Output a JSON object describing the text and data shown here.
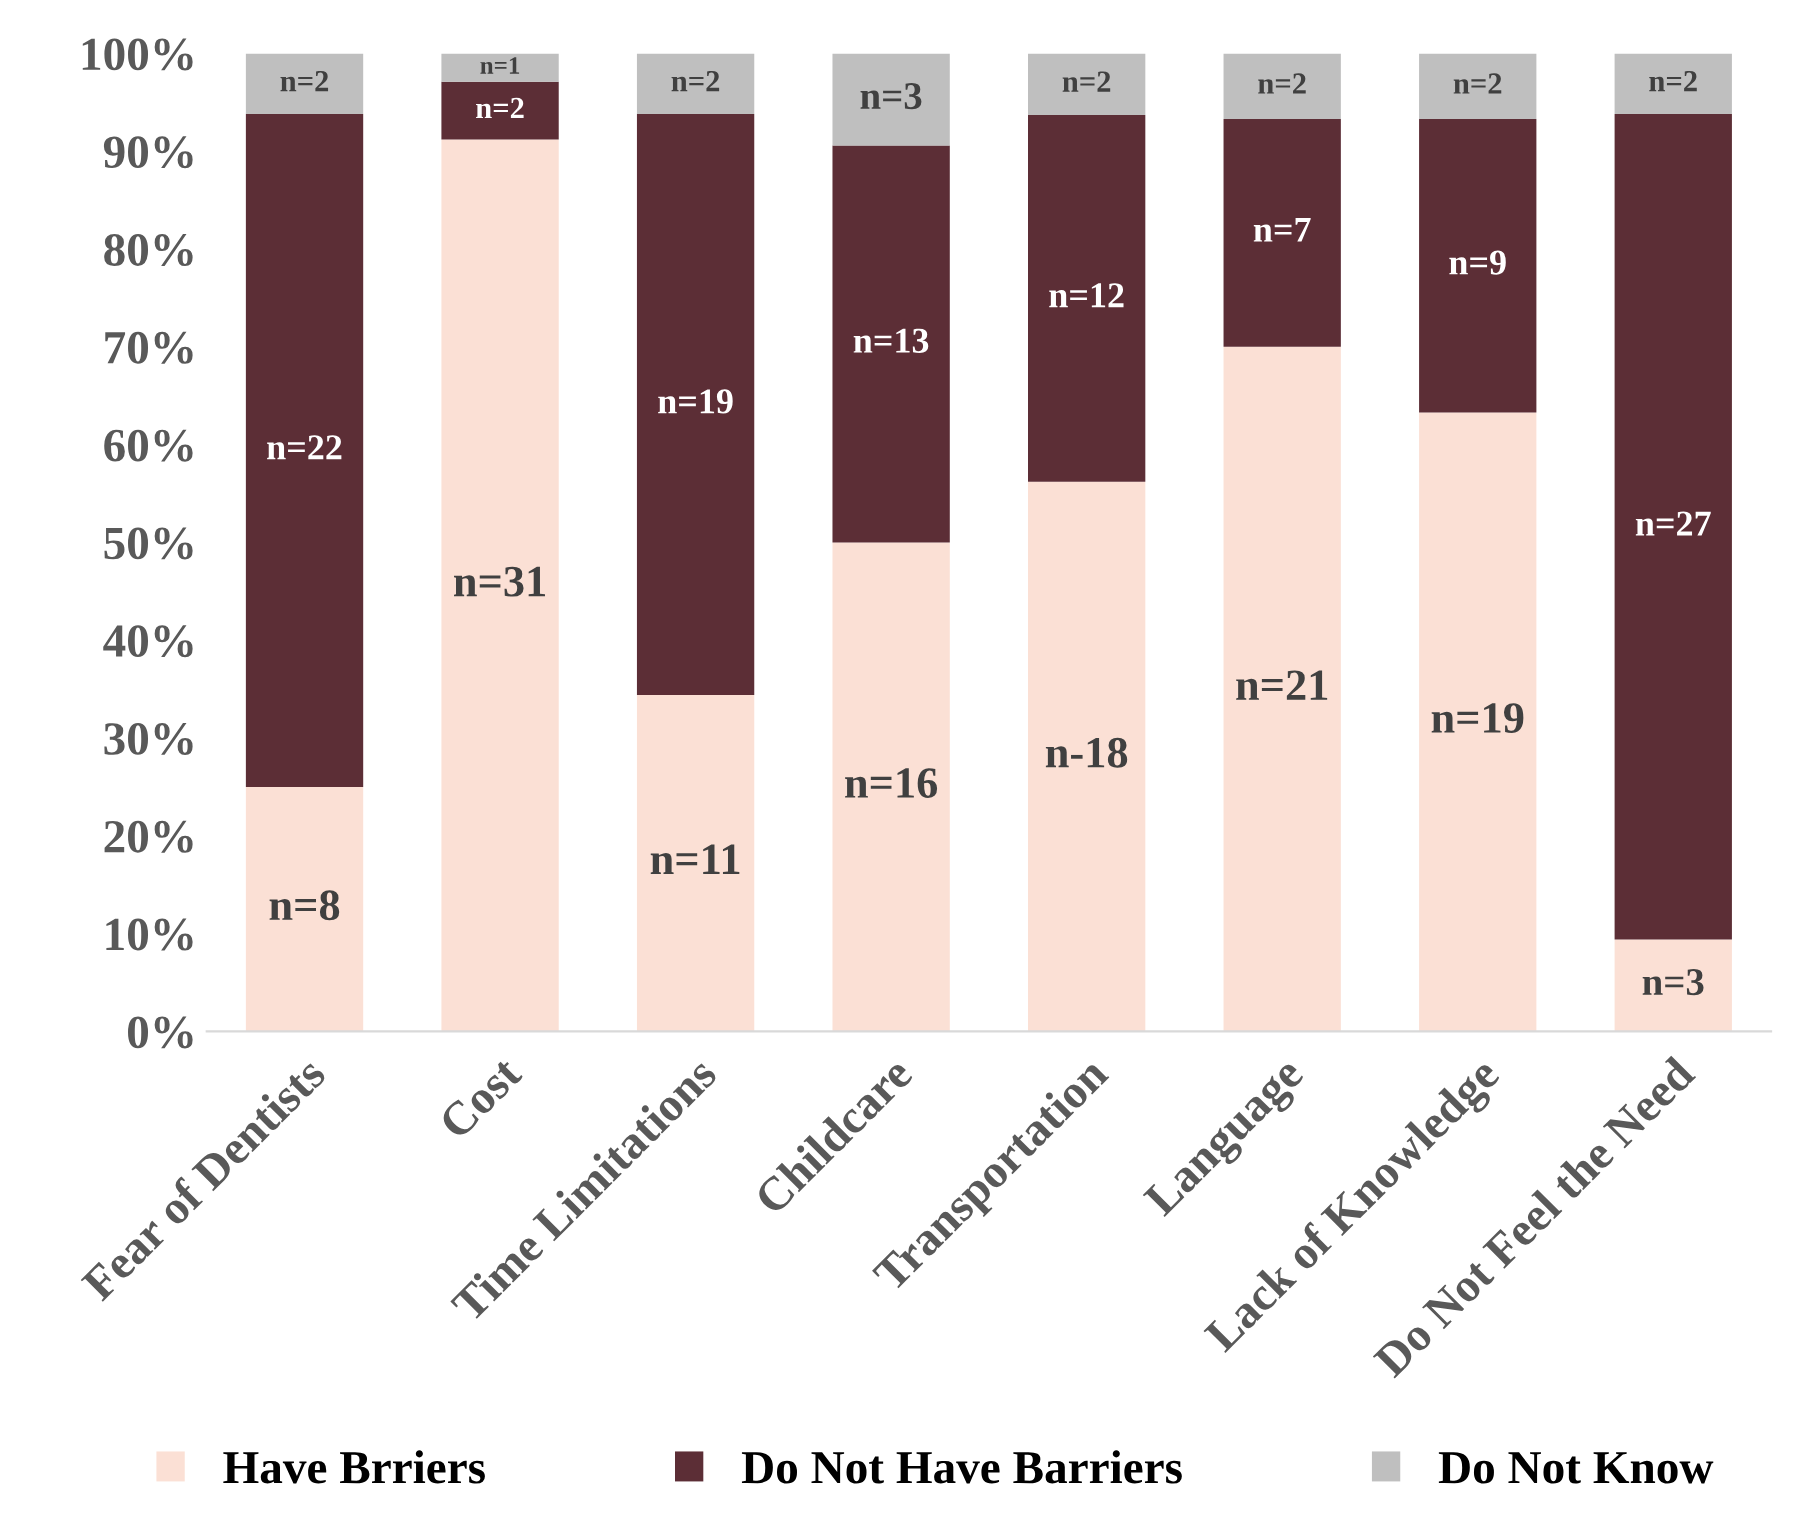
{
  "chart_data": {
    "type": "bar",
    "stacked": true,
    "categories": [
      "Fear of Dentists",
      "Cost",
      "Time Limitations",
      "Childcare",
      "Transportation",
      "Language",
      "Lack of Knowledge",
      "Do Not Feel the Need"
    ],
    "series": [
      {
        "name": "Have Brriers",
        "color": "#fbe0d5",
        "values": [
          25,
          91.2,
          34.4,
          50,
          56.2,
          70,
          63.3,
          9.4
        ]
      },
      {
        "name": "Do Not Have Barriers",
        "color": "#5c2e36",
        "values": [
          68.8,
          5.9,
          59.4,
          40.6,
          37.5,
          23.3,
          30,
          84.4
        ]
      },
      {
        "name": "Do Not Know",
        "color": "#bfbfbf",
        "values": [
          6.2,
          2.9,
          6.2,
          9.4,
          6.3,
          6.7,
          6.7,
          6.2
        ]
      }
    ],
    "annotations": [
      "n=8",
      "n=31",
      "n=11",
      "n=16",
      "n-18",
      "n=21",
      "n=19",
      "n=3",
      "n=22",
      "n=2",
      "n=19",
      "n=13",
      "n=12",
      "n=7",
      "n=9",
      "n=27",
      "n=2",
      "n=1",
      "n=2",
      "n=3",
      "n=2",
      "n=2",
      "n=2",
      "n=2"
    ],
    "ylim": [
      0,
      100
    ],
    "yticks": [
      {
        "value": 0,
        "label": "0%"
      },
      {
        "value": 10,
        "label": "10%"
      },
      {
        "value": 20,
        "label": "20%"
      },
      {
        "value": 30,
        "label": "30%"
      },
      {
        "value": 40,
        "label": "40%"
      },
      {
        "value": 50,
        "label": "50%"
      },
      {
        "value": 60,
        "label": "60%"
      },
      {
        "value": 70,
        "label": "70%"
      },
      {
        "value": 80,
        "label": "80%"
      },
      {
        "value": 90,
        "label": "90%"
      },
      {
        "value": 100,
        "label": "100%"
      }
    ],
    "grid": false,
    "legend": "bottom"
  }
}
